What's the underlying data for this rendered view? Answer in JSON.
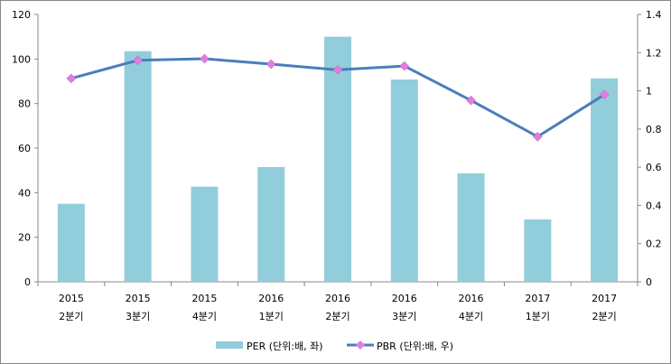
{
  "chart_data": {
    "type": "bar+line",
    "categories": [
      [
        "2015",
        "2분기"
      ],
      [
        "2015",
        "3분기"
      ],
      [
        "2015",
        "4분기"
      ],
      [
        "2016",
        "1분기"
      ],
      [
        "2016",
        "2분기"
      ],
      [
        "2016",
        "3분기"
      ],
      [
        "2016",
        "4분기"
      ],
      [
        "2017",
        "1분기"
      ],
      [
        "2017",
        "2분기"
      ]
    ],
    "series": [
      {
        "name": "PER (단위:배, 좌)",
        "type": "bar",
        "axis": "left",
        "color": "#92CDDC",
        "values": [
          35,
          103.5,
          42.7,
          51.5,
          110,
          90.8,
          48.7,
          28,
          91.3
        ]
      },
      {
        "name": "PBR (단위:배, 우)",
        "type": "line",
        "axis": "right",
        "color": "#4A7EBB",
        "marker_color": "#E27CE3",
        "values": [
          1.065,
          1.16,
          1.168,
          1.14,
          1.11,
          1.13,
          0.95,
          0.76,
          0.98
        ]
      }
    ],
    "left_axis": {
      "ylim": [
        0,
        120
      ],
      "ticks": [
        "0",
        "20",
        "40",
        "60",
        "80",
        "100",
        "120"
      ]
    },
    "right_axis": {
      "ylim": [
        0,
        1.4
      ],
      "ticks": [
        "0",
        "0.2",
        "0.4",
        "0.6",
        "0.8",
        "1",
        "1.2",
        "1.4"
      ]
    },
    "legend": "bottom",
    "grid": false
  }
}
